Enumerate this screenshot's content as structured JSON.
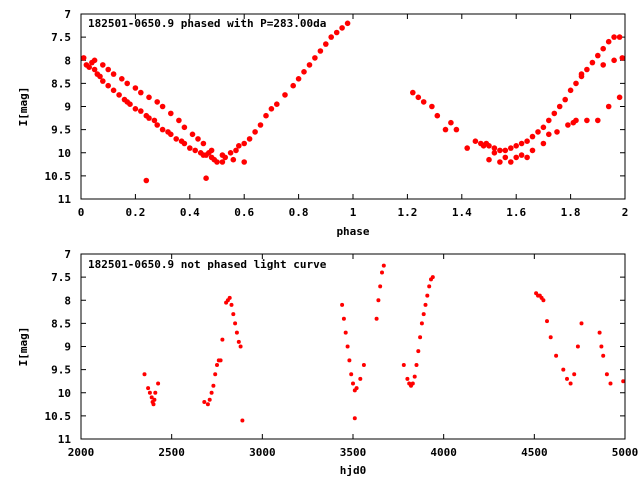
{
  "chart_data": [
    {
      "type": "scatter",
      "title": "182501-0650.9 phased with P=283.00da",
      "xlabel": "phase",
      "ylabel": "I[mag]",
      "xlim": [
        0,
        2
      ],
      "ylim": [
        7,
        11
      ],
      "y_inverted": true,
      "xticks": [
        0,
        0.2,
        0.4,
        0.6,
        0.8,
        1,
        1.2,
        1.4,
        1.6,
        1.8,
        2
      ],
      "xtick_labels": [
        "0",
        "0.2",
        "0.4",
        "0.6",
        "0.8",
        "1",
        "1.2",
        "1.4",
        "1.6",
        "1.8",
        "2"
      ],
      "yticks": [
        7,
        7.5,
        8,
        8.5,
        9,
        9.5,
        10,
        10.5,
        11
      ],
      "ytick_labels": [
        "7",
        "7.5",
        "8",
        "8.5",
        "9",
        "9.5",
        "10",
        "10.5",
        "11"
      ],
      "color": "#ff0000",
      "series": [
        {
          "name": "phased",
          "x": [
            0.01,
            0.02,
            0.03,
            0.04,
            0.05,
            0.06,
            0.07,
            0.08,
            0.1,
            0.12,
            0.14,
            0.16,
            0.17,
            0.18,
            0.2,
            0.22,
            0.24,
            0.25,
            0.27,
            0.28,
            0.3,
            0.32,
            0.33,
            0.35,
            0.37,
            0.38,
            0.4,
            0.42,
            0.44,
            0.45,
            0.46,
            0.47,
            0.48,
            0.49,
            0.5,
            0.52,
            0.53,
            0.55,
            0.57,
            0.58,
            0.6,
            0.62,
            0.64,
            0.66,
            0.68,
            0.7,
            0.72,
            0.75,
            0.78,
            0.8,
            0.82,
            0.84,
            0.86,
            0.88,
            0.9,
            0.92,
            0.94,
            0.96,
            0.98,
            0.05,
            0.08,
            0.1,
            0.12,
            0.15,
            0.17,
            0.2,
            0.22,
            0.25,
            0.28,
            0.3,
            0.33,
            0.36,
            0.38,
            0.41,
            0.43,
            0.45,
            0.48,
            0.52,
            0.56,
            0.6,
            0.24,
            0.46,
            1.22,
            1.24,
            1.26,
            1.29,
            1.31,
            1.34,
            1.36,
            1.38,
            1.42,
            1.45,
            1.47,
            1.49,
            1.5,
            1.52,
            1.54,
            1.56,
            1.58,
            1.6,
            1.62,
            1.64,
            1.66,
            1.68,
            1.7,
            1.72,
            1.74,
            1.76,
            1.78,
            1.8,
            1.82,
            1.84,
            1.86,
            1.88,
            1.9,
            1.92,
            1.94,
            1.96,
            1.98,
            1.48,
            1.52,
            1.56,
            1.6,
            1.62,
            1.66,
            1.7,
            1.75,
            1.79,
            1.82,
            1.86,
            1.9,
            1.94,
            1.98,
            1.5,
            1.54,
            1.58,
            1.64,
            1.72,
            1.81,
            1.84,
            1.92,
            1.96,
            1.99
          ],
          "y": [
            7.95,
            8.1,
            8.15,
            8.05,
            8.2,
            8.3,
            8.35,
            8.45,
            8.55,
            8.65,
            8.75,
            8.85,
            8.9,
            8.95,
            9.05,
            9.1,
            9.2,
            9.25,
            9.3,
            9.4,
            9.5,
            9.55,
            9.6,
            9.7,
            9.75,
            9.8,
            9.9,
            9.95,
            10.0,
            10.05,
            10.05,
            10.0,
            10.1,
            10.15,
            10.2,
            10.2,
            10.1,
            10.0,
            9.95,
            9.85,
            9.8,
            9.7,
            9.55,
            9.4,
            9.2,
            9.05,
            8.95,
            8.75,
            8.55,
            8.4,
            8.25,
            8.1,
            7.95,
            7.8,
            7.65,
            7.5,
            7.4,
            7.3,
            7.2,
            8.0,
            8.1,
            8.2,
            8.3,
            8.4,
            8.5,
            8.6,
            8.7,
            8.8,
            8.9,
            9.0,
            9.15,
            9.3,
            9.45,
            9.6,
            9.7,
            9.8,
            9.95,
            10.05,
            10.15,
            10.2,
            10.6,
            10.55,
            8.7,
            8.8,
            8.9,
            9.0,
            9.2,
            9.5,
            9.35,
            9.5,
            9.9,
            9.75,
            9.8,
            9.8,
            9.85,
            9.9,
            9.95,
            9.95,
            9.9,
            9.85,
            9.8,
            9.75,
            9.65,
            9.55,
            9.45,
            9.3,
            9.15,
            9.0,
            8.85,
            8.65,
            8.5,
            8.35,
            8.2,
            8.05,
            7.9,
            7.75,
            7.6,
            7.5,
            7.5,
            9.85,
            10.0,
            10.1,
            10.1,
            10.05,
            9.95,
            9.8,
            9.55,
            9.4,
            9.3,
            9.3,
            9.3,
            9.0,
            8.8,
            10.15,
            10.2,
            10.2,
            10.1,
            9.6,
            9.35,
            8.3,
            8.1,
            8.0,
            7.95
          ]
        }
      ]
    },
    {
      "type": "scatter",
      "title": "182501-0650.9 not phased light curve",
      "xlabel": "hjd0",
      "ylabel": "I[mag]",
      "xlim": [
        2000,
        5000
      ],
      "ylim": [
        7,
        11
      ],
      "y_inverted": true,
      "xticks": [
        2000,
        2500,
        3000,
        3500,
        4000,
        4500,
        5000
      ],
      "xtick_labels": [
        "2000",
        "2500",
        "3000",
        "3500",
        "4000",
        "4500",
        "5000"
      ],
      "yticks": [
        7,
        7.5,
        8,
        8.5,
        9,
        9.5,
        10,
        10.5,
        11
      ],
      "ytick_labels": [
        "7",
        "7.5",
        "8",
        "8.5",
        "9",
        "9.5",
        "10",
        "10.5",
        "11"
      ],
      "color": "#ff0000",
      "series": [
        {
          "name": "light curve",
          "x": [
            2350,
            2370,
            2380,
            2390,
            2395,
            2400,
            2405,
            2410,
            2425,
            2680,
            2700,
            2710,
            2720,
            2730,
            2740,
            2750,
            2760,
            2770,
            2780,
            2800,
            2810,
            2820,
            2830,
            2840,
            2850,
            2860,
            2870,
            2880,
            2890,
            3440,
            3450,
            3460,
            3470,
            3480,
            3490,
            3500,
            3510,
            3520,
            3540,
            3560,
            3510,
            3630,
            3640,
            3650,
            3660,
            3670,
            3780,
            3800,
            3810,
            3820,
            3830,
            3840,
            3850,
            3860,
            3870,
            3880,
            3890,
            3900,
            3910,
            3920,
            3930,
            3940,
            4510,
            4520,
            4530,
            4540,
            4550,
            4570,
            4590,
            4620,
            4660,
            4680,
            4700,
            4720,
            4740,
            4760,
            4860,
            4870,
            4880,
            4900,
            4920,
            4990
          ],
          "y": [
            9.6,
            9.9,
            10.0,
            10.1,
            10.2,
            10.25,
            10.15,
            10.0,
            9.8,
            10.2,
            10.25,
            10.15,
            10.0,
            9.85,
            9.6,
            9.4,
            9.3,
            9.3,
            8.85,
            8.05,
            8.0,
            7.95,
            8.1,
            8.3,
            8.5,
            8.7,
            8.9,
            9.0,
            10.6,
            8.1,
            8.4,
            8.7,
            9.0,
            9.3,
            9.6,
            9.8,
            9.95,
            9.9,
            9.7,
            9.4,
            10.55,
            8.4,
            8.0,
            7.7,
            7.4,
            7.25,
            9.4,
            9.7,
            9.8,
            9.85,
            9.8,
            9.65,
            9.4,
            9.1,
            8.8,
            8.5,
            8.3,
            8.1,
            7.9,
            7.7,
            7.55,
            7.5,
            7.85,
            7.9,
            7.9,
            7.95,
            8.0,
            8.45,
            8.8,
            9.2,
            9.5,
            9.7,
            9.8,
            9.6,
            9.0,
            8.5,
            8.7,
            9.0,
            9.2,
            9.6,
            9.8,
            9.75
          ]
        }
      ]
    }
  ]
}
